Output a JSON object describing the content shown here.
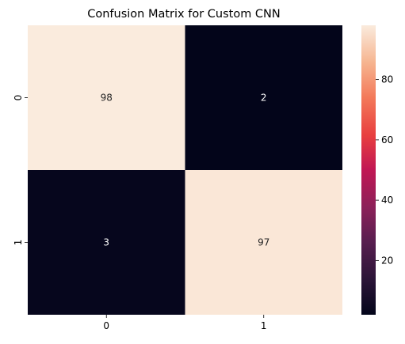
{
  "chart_data": {
    "type": "heatmap",
    "title": "Confusion Matrix for Custom CNN",
    "x_categories": [
      "0",
      "1"
    ],
    "y_categories": [
      "0",
      "1"
    ],
    "values": [
      [
        98,
        2
      ],
      [
        3,
        97
      ]
    ],
    "xlabel": "",
    "ylabel": "",
    "colormap": "rocket",
    "color_range": [
      2,
      98
    ],
    "colorbar_ticks": [
      20,
      40,
      60,
      80
    ],
    "colorbar_placement": "right",
    "annotations": true,
    "colors": {
      "low": "#03051a",
      "high": "#faebdd"
    }
  }
}
